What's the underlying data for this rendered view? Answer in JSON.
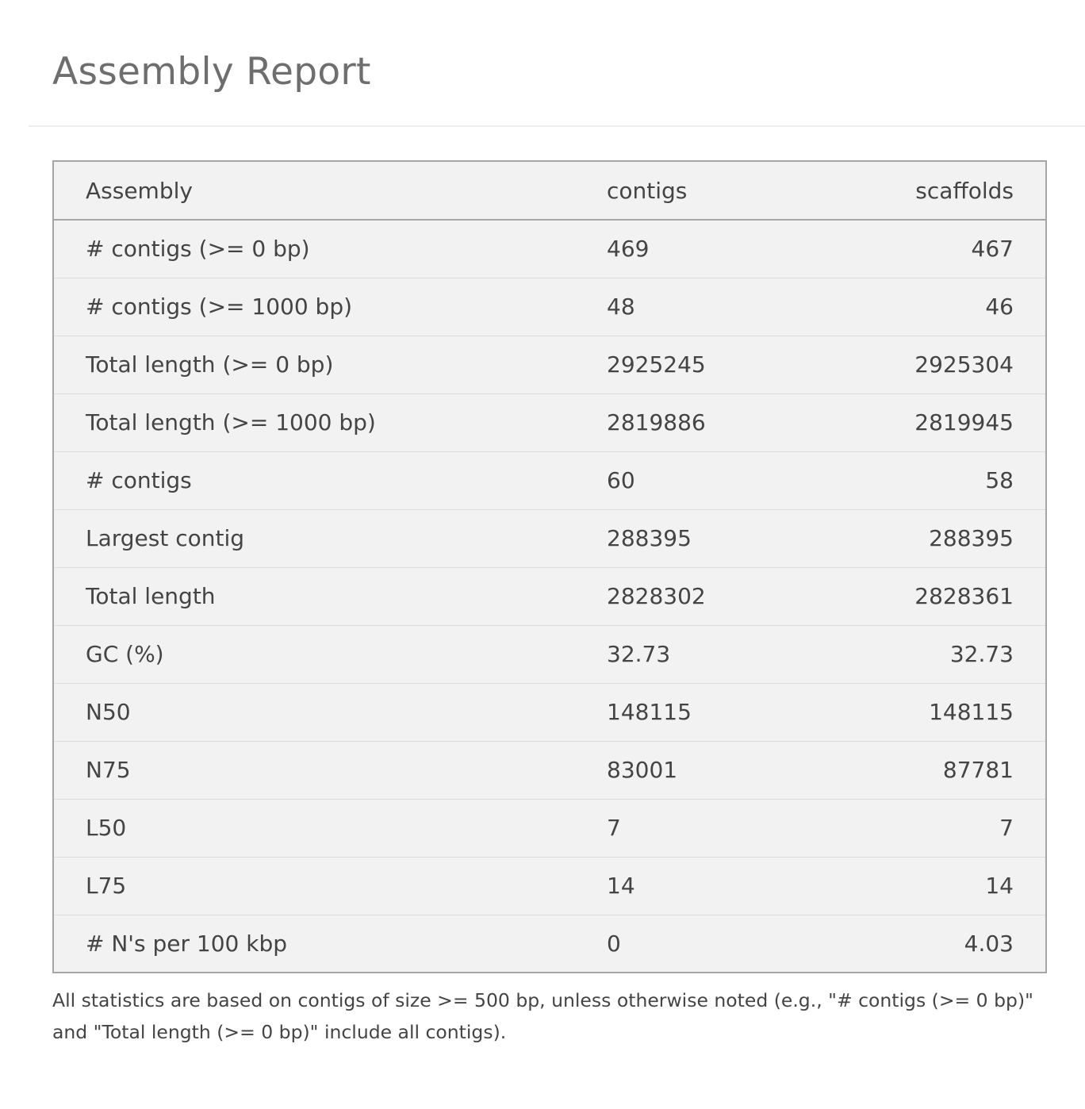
{
  "header": {
    "title": "Assembly Report"
  },
  "table": {
    "columns": [
      "Assembly",
      "contigs",
      "scaffolds"
    ],
    "rows": [
      {
        "label": "# contigs (>= 0 bp)",
        "contigs": "469",
        "scaffolds": "467"
      },
      {
        "label": "# contigs (>= 1000 bp)",
        "contigs": "48",
        "scaffolds": "46"
      },
      {
        "label": "Total length (>= 0 bp)",
        "contigs": "2925245",
        "scaffolds": "2925304"
      },
      {
        "label": "Total length (>= 1000 bp)",
        "contigs": "2819886",
        "scaffolds": "2819945"
      },
      {
        "label": "# contigs",
        "contigs": "60",
        "scaffolds": "58"
      },
      {
        "label": "Largest contig",
        "contigs": "288395",
        "scaffolds": "288395"
      },
      {
        "label": "Total length",
        "contigs": "2828302",
        "scaffolds": "2828361"
      },
      {
        "label": "GC (%)",
        "contigs": "32.73",
        "scaffolds": "32.73"
      },
      {
        "label": "N50",
        "contigs": "148115",
        "scaffolds": "148115"
      },
      {
        "label": "N75",
        "contigs": "83001",
        "scaffolds": "87781"
      },
      {
        "label": "L50",
        "contigs": "7",
        "scaffolds": "7"
      },
      {
        "label": "L75",
        "contigs": "14",
        "scaffolds": "14"
      },
      {
        "label": "# N's per 100 kbp",
        "contigs": "0",
        "scaffolds": "4.03"
      }
    ]
  },
  "footnote": "All statistics are based on contigs of size >= 500 bp, unless otherwise noted (e.g., \"# contigs (>= 0 bp)\" and \"Total length (>= 0 bp)\" include all contigs)."
}
